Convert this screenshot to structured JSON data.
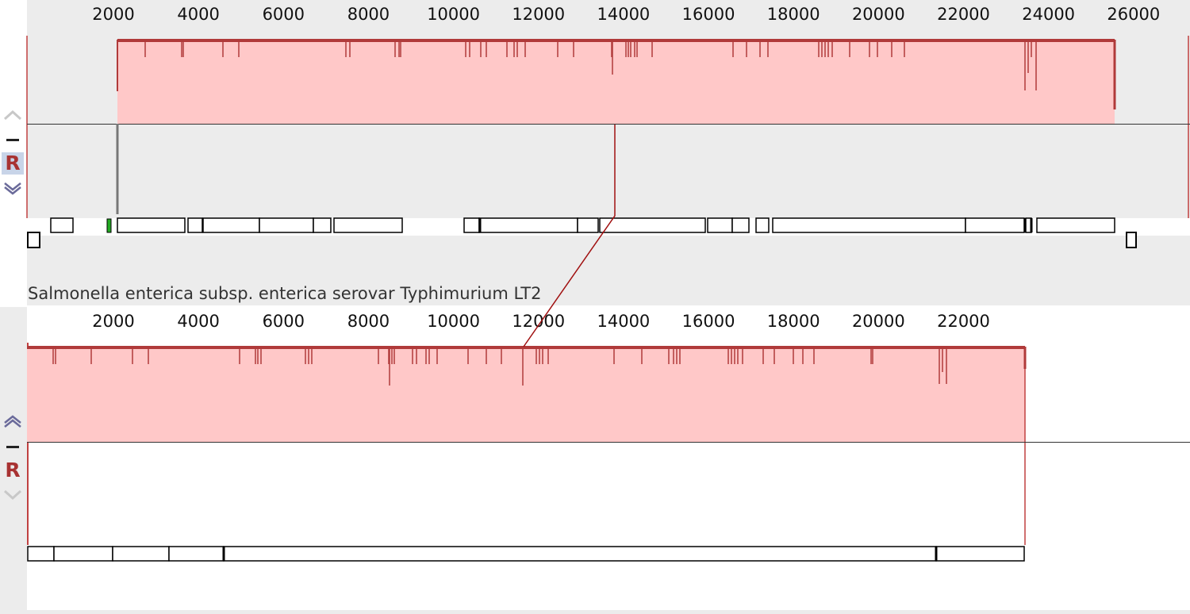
{
  "genomes": [
    {
      "id": "genome-1",
      "name": "",
      "ruler_ticks": [
        "2000",
        "4000",
        "6000",
        "8000",
        "10000",
        "12000",
        "14000",
        "16000",
        "18000",
        "20000",
        "22000",
        "24000",
        "26000"
      ],
      "controls": {
        "up": "up-arrow-icon",
        "minus": "minus-icon",
        "r_label": "R",
        "down": "down-arrow-icon"
      },
      "block_color": "#ffc8c8",
      "block_border": "#b03a3a"
    },
    {
      "id": "genome-2",
      "name": "Salmonella enterica subsp. enterica serovar Typhimurium LT2",
      "ruler_ticks": [
        "2000",
        "4000",
        "6000",
        "8000",
        "10000",
        "12000",
        "14000",
        "16000",
        "18000",
        "20000",
        "22000"
      ],
      "controls": {
        "up": "up-arrow-icon",
        "minus": "minus-icon",
        "r_label": "R",
        "down": "down-arrow-icon"
      },
      "block_color": "#ffc8c8",
      "block_border": "#b03a3a"
    }
  ],
  "colors": {
    "connector": "#a01010",
    "panel_bg": "#ececec",
    "gene_outline": "#000000",
    "highlight_gene": "#22aa22"
  }
}
